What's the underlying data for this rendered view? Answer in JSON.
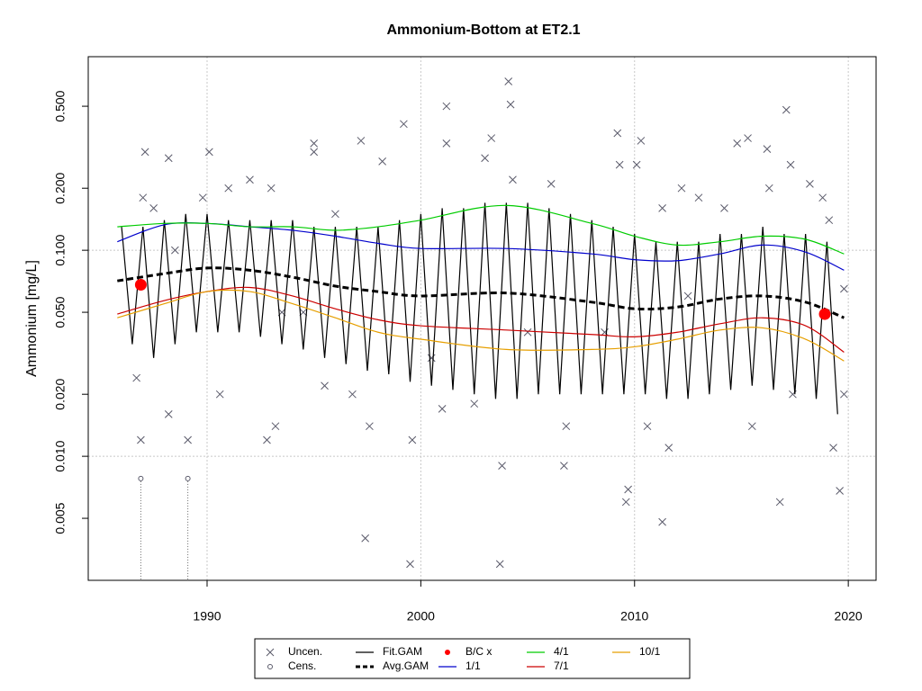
{
  "chart_data": {
    "type": "line",
    "title": "Ammonium-Bottom at ET2.1",
    "y_label": "Ammonium [mg/L]",
    "log_y": true,
    "grid": true,
    "xlim": [
      1984.44,
      2021.3
    ],
    "xticks": [
      1990,
      2000,
      2010,
      2020
    ],
    "ylim": [
      0.0025,
      0.87
    ],
    "yticks": [
      0.005,
      {
        "value": 0.01,
        "label": "0.010"
      },
      {
        "value": 0.02,
        "label": "0.020"
      },
      {
        "value": 0.05,
        "label": "0.050"
      },
      {
        "value": 0.1,
        "label": "0.100"
      },
      {
        "value": 0.2,
        "label": "0.200"
      },
      {
        "value": 0.5,
        "label": "0.500"
      }
    ],
    "legend": "bottom",
    "series": [
      {
        "name": "Uncen.",
        "kind": "points",
        "marker": "x",
        "color": "#5a5a6a",
        "x": [
          1986.9,
          1986.7,
          1987.1,
          1987,
          1987.5,
          1988.2,
          1988.2,
          1989.1,
          1989.8,
          1990.1,
          1990.6,
          1991,
          1992,
          1992.8,
          1993.2,
          1993,
          1994.5,
          1995,
          1995,
          1995.5,
          1996,
          1996.8,
          1997.2,
          1997.4,
          1997.6,
          1998.2,
          1999.2,
          1999.5,
          1999.6,
          2001.2,
          2001.2,
          2001,
          2002.5,
          2003,
          2003.3,
          2003.8,
          2003.7,
          2004.1,
          2004.2,
          2004.3,
          2006.1,
          2006.7,
          2006.8,
          2008.6,
          2009.2,
          2009.3,
          2009.6,
          2009.7,
          2010.3,
          2010.1,
          2010.6,
          2011.3,
          2011.3,
          2011.6,
          2012.2,
          2013,
          2014.2,
          2014.8,
          2015.3,
          2015.5,
          2016.2,
          2016.3,
          2016.8,
          2017.1,
          2017.3,
          2017.4,
          2018.2,
          2018.8,
          2019.1,
          2019.3,
          2019.6,
          2019.8,
          2019.8,
          1988.5,
          1993.5,
          2000.5,
          2005,
          2012.5
        ],
        "values": [
          0.012,
          0.024,
          0.3,
          0.18,
          0.16,
          0.016,
          0.28,
          0.012,
          0.18,
          0.3,
          0.02,
          0.2,
          0.22,
          0.012,
          0.014,
          0.2,
          0.05,
          0.33,
          0.3,
          0.022,
          0.15,
          0.02,
          0.34,
          0.004,
          0.014,
          0.27,
          0.41,
          0.003,
          0.012,
          0.33,
          0.5,
          0.017,
          0.018,
          0.28,
          0.35,
          0.009,
          0.003,
          0.66,
          0.51,
          0.22,
          0.21,
          0.009,
          0.014,
          0.04,
          0.37,
          0.26,
          0.006,
          0.0069,
          0.34,
          0.26,
          0.014,
          0.0048,
          0.16,
          0.011,
          0.2,
          0.18,
          0.16,
          0.33,
          0.35,
          0.014,
          0.31,
          0.2,
          0.006,
          0.48,
          0.26,
          0.02,
          0.21,
          0.18,
          0.14,
          0.011,
          0.0068,
          0.065,
          0.02,
          0.1,
          0.05,
          0.03,
          0.04,
          0.06
        ]
      },
      {
        "name": "Cens.",
        "kind": "points",
        "marker": "o",
        "color": "#5a5a6a",
        "drop_lines": true,
        "x": [
          1986.9,
          1989.1
        ],
        "values": [
          0.0078,
          0.0078
        ]
      },
      {
        "name": "Fit.GAM",
        "kind": "line",
        "color": "#000000",
        "x": [
          1986,
          1986.5,
          1987,
          1987.5,
          1988,
          1988.5,
          1989,
          1989.5,
          1990,
          1990.5,
          1991,
          1991.5,
          1992,
          1992.5,
          1993,
          1993.5,
          1994,
          1994.5,
          1995,
          1995.5,
          1996,
          1996.5,
          1997,
          1997.5,
          1998,
          1998.5,
          1999,
          1999.5,
          2000,
          2000.5,
          2001,
          2001.5,
          2002,
          2002.5,
          2003,
          2003.5,
          2004,
          2004.5,
          2005,
          2005.5,
          2006,
          2006.5,
          2007,
          2007.5,
          2008,
          2008.5,
          2009,
          2009.5,
          2010,
          2010.5,
          2011,
          2011.5,
          2012,
          2012.5,
          2013,
          2013.5,
          2014,
          2014.5,
          2015,
          2015.5,
          2016,
          2016.5,
          2017,
          2017.5,
          2018,
          2018.5,
          2019,
          2019.5
        ],
        "values": [
          0.13,
          0.035,
          0.13,
          0.03,
          0.14,
          0.035,
          0.15,
          0.04,
          0.15,
          0.04,
          0.14,
          0.04,
          0.14,
          0.038,
          0.14,
          0.035,
          0.14,
          0.033,
          0.13,
          0.03,
          0.13,
          0.028,
          0.13,
          0.026,
          0.13,
          0.025,
          0.14,
          0.023,
          0.15,
          0.022,
          0.16,
          0.021,
          0.16,
          0.02,
          0.17,
          0.019,
          0.17,
          0.019,
          0.17,
          0.02,
          0.16,
          0.02,
          0.15,
          0.02,
          0.14,
          0.02,
          0.13,
          0.02,
          0.12,
          0.02,
          0.11,
          0.019,
          0.11,
          0.019,
          0.11,
          0.02,
          0.12,
          0.021,
          0.12,
          0.022,
          0.13,
          0.021,
          0.12,
          0.02,
          0.12,
          0.019,
          0.11,
          0.016
        ]
      },
      {
        "name": "Avg.GAM",
        "kind": "line",
        "smooth": true,
        "dash": true,
        "color": "#000000",
        "x": [
          1985.8,
          1988,
          1990,
          1992,
          1994,
          1996,
          1998,
          2000,
          2004,
          2008,
          2010,
          2012,
          2014,
          2016,
          2018,
          2019.8
        ],
        "values": [
          0.071,
          0.077,
          0.082,
          0.08,
          0.074,
          0.067,
          0.063,
          0.06,
          0.062,
          0.056,
          0.052,
          0.053,
          0.058,
          0.06,
          0.056,
          0.047
        ]
      },
      {
        "name": "B/C x",
        "kind": "points",
        "marker": "dot",
        "color": "#ff0000",
        "x": [
          1986.9,
          2018.9
        ],
        "values": [
          0.068,
          0.049
        ]
      },
      {
        "name": "1/1",
        "kind": "line",
        "smooth": true,
        "color": "#0000cc",
        "x": [
          1985.8,
          1988,
          1990,
          1992,
          1994,
          1996,
          1998,
          2000,
          2004,
          2008,
          2010,
          2012,
          2014,
          2016,
          2018,
          2019.8
        ],
        "values": [
          0.11,
          0.133,
          0.135,
          0.13,
          0.125,
          0.117,
          0.108,
          0.102,
          0.102,
          0.096,
          0.09,
          0.089,
          0.096,
          0.106,
          0.098,
          0.08
        ]
      },
      {
        "name": "4/1",
        "kind": "line",
        "smooth": true,
        "color": "#00cc00",
        "x": [
          1985.8,
          1988,
          1990,
          1992,
          1994,
          1996,
          1998,
          2000,
          2004,
          2008,
          2010,
          2012,
          2014,
          2016,
          2018,
          2019.8
        ],
        "values": [
          0.13,
          0.135,
          0.135,
          0.13,
          0.13,
          0.125,
          0.13,
          0.14,
          0.165,
          0.135,
          0.117,
          0.106,
          0.11,
          0.117,
          0.113,
          0.096
        ]
      },
      {
        "name": "7/1",
        "kind": "line",
        "smooth": true,
        "color": "#cc0000",
        "x": [
          1985.8,
          1988,
          1990,
          1992,
          1994,
          1996,
          1998,
          2000,
          2004,
          2008,
          2010,
          2012,
          2014,
          2016,
          2018,
          2019.8
        ],
        "values": [
          0.049,
          0.057,
          0.063,
          0.066,
          0.06,
          0.052,
          0.046,
          0.043,
          0.041,
          0.039,
          0.038,
          0.04,
          0.044,
          0.047,
          0.043,
          0.032
        ]
      },
      {
        "name": "10/1",
        "kind": "line",
        "smooth": true,
        "color": "#e69f00",
        "x": [
          1985.8,
          1988,
          1990,
          1992,
          1994,
          1996,
          1998,
          2000,
          2004,
          2008,
          2010,
          2012,
          2014,
          2016,
          2018,
          2019.8
        ],
        "values": [
          0.047,
          0.055,
          0.063,
          0.063,
          0.055,
          0.047,
          0.04,
          0.037,
          0.033,
          0.033,
          0.034,
          0.037,
          0.041,
          0.042,
          0.037,
          0.029
        ]
      }
    ]
  }
}
